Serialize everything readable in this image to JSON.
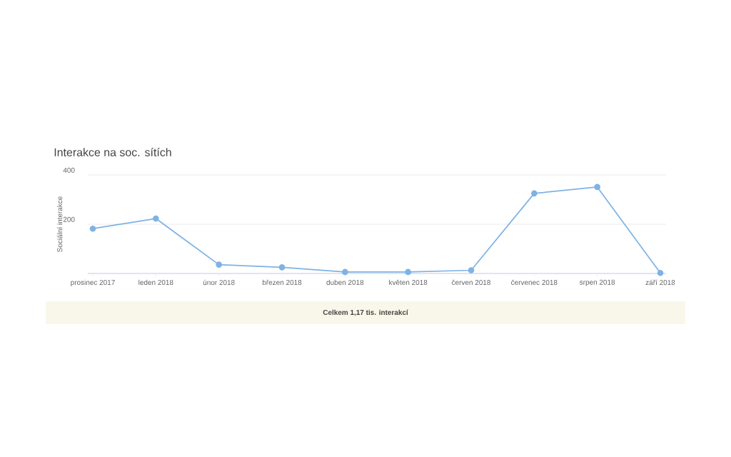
{
  "chart_data": {
    "type": "line",
    "title": "Interakce na soc. sítích",
    "ylabel": "Sociální interakce",
    "categories": [
      "prosinec 2017",
      "leden 2018",
      "únor 2018",
      "březen 2018",
      "duben 2018",
      "květen 2018",
      "červen 2018",
      "červenec 2018",
      "srpen 2018",
      "září 2018"
    ],
    "series": [
      {
        "color": "#7fb2e5",
        "values": [
          182,
          223,
          36,
          25,
          6,
          6,
          13,
          325,
          351,
          2
        ]
      }
    ],
    "ylim": [
      0,
      400
    ],
    "yticks": [
      {
        "value": 0,
        "label": null
      },
      200,
      400
    ],
    "grid": "y",
    "marker": "circle",
    "line_style": "solid",
    "annotations": [
      "Celkem 1,17 tis. interakcí"
    ]
  }
}
